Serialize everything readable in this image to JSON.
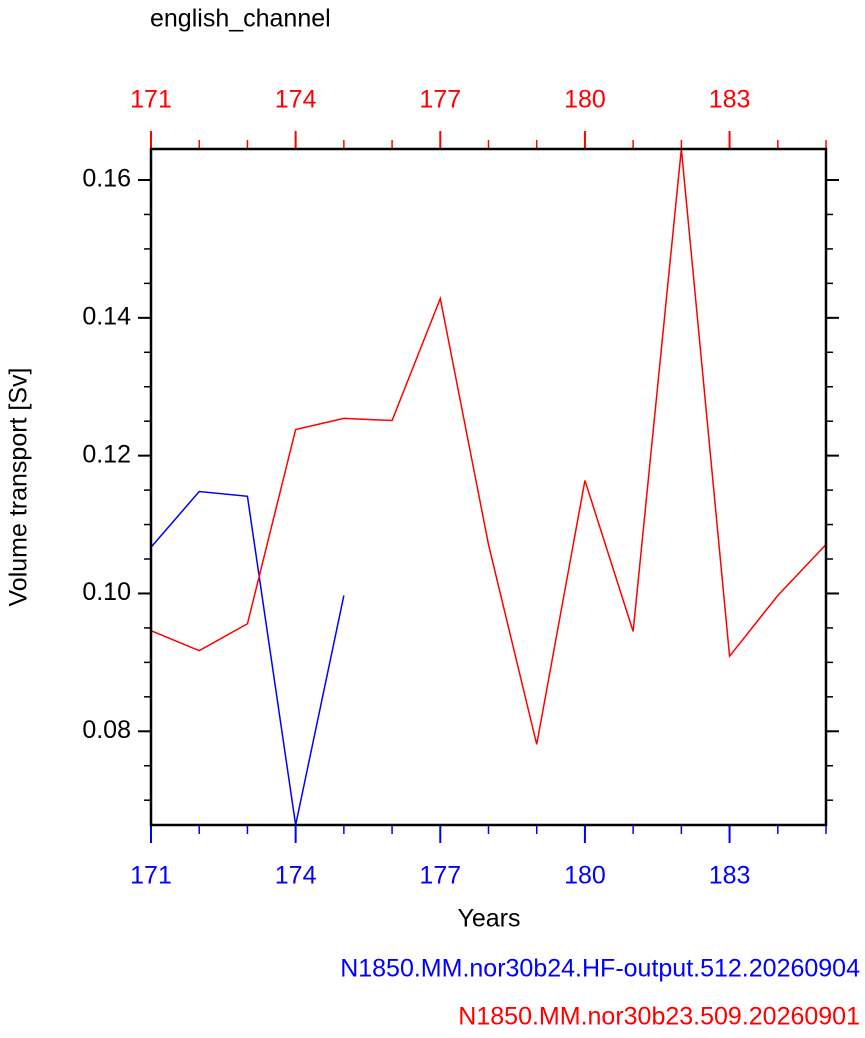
{
  "chart_data": {
    "type": "line",
    "title": "english_channel",
    "x_label": "Years",
    "y_label": "Volume transport [Sv]",
    "x": [
      171,
      172,
      173,
      174,
      175,
      176,
      177,
      178,
      179,
      180,
      181,
      182,
      183,
      184,
      185
    ],
    "series": [
      {
        "name": "N1850.MM.nor30b24.HF-output.512.20260904",
        "color": "#0000ff",
        "values": [
          0.1067,
          0.1148,
          0.1141,
          0.0664,
          0.0997,
          null,
          null,
          null,
          null,
          null,
          null,
          null,
          null,
          null,
          null
        ]
      },
      {
        "name": "N1850.MM.nor30b23.509.20260901",
        "color": "#ff0000",
        "values": [
          0.0946,
          0.0917,
          0.0956,
          0.1238,
          0.1254,
          0.1251,
          0.1428,
          0.1071,
          0.0781,
          0.1164,
          0.0945,
          0.1645,
          0.0909,
          0.0997,
          0.1071
        ]
      }
    ],
    "xlim": [
      171,
      185
    ],
    "xticks": [
      171,
      174,
      177,
      180,
      183
    ],
    "xtick_color": "#0000ff",
    "x2ticks": [
      171,
      174,
      177,
      180,
      183
    ],
    "x2tick_color": "#ff0000",
    "ylim": [
      0.0664,
      0.1645
    ],
    "yticks": [
      0.08,
      {
        "value": 0.1,
        "label": "0.10"
      },
      0.12,
      0.14,
      0.16
    ]
  }
}
